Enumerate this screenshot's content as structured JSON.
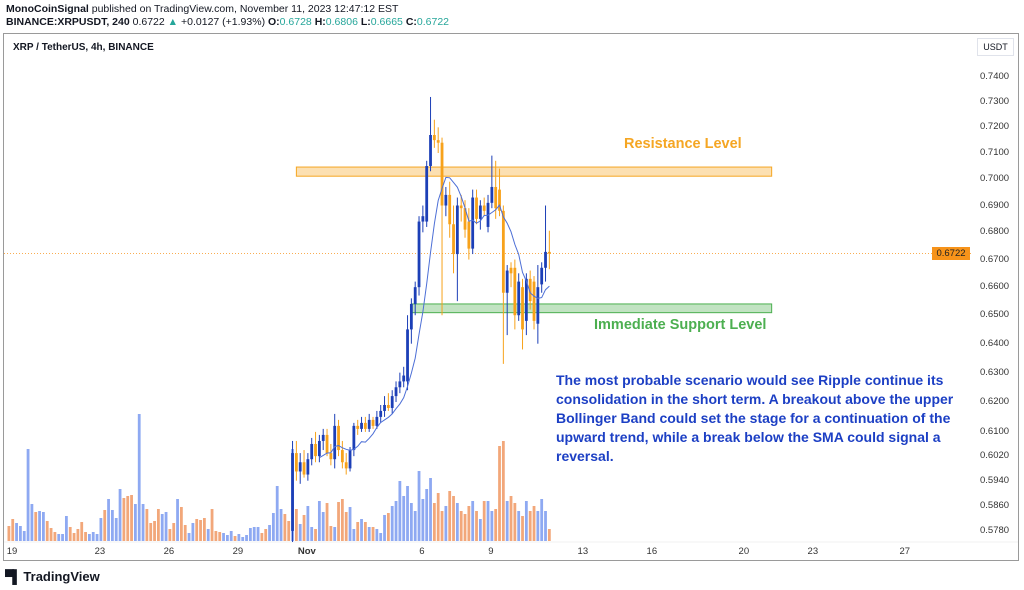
{
  "header": {
    "author": "MonoCoinSignal",
    "published": "published on TradingView.com, November 11, 2023 12:47:12 EST",
    "symbol": "BINANCE:XRPUSDT, 240",
    "price": "0.6722",
    "change": "+0.0127 (+1.93%)",
    "o_label": "O:",
    "o": "0.6728",
    "h_label": "H:",
    "h": "0.6806",
    "l_label": "L:",
    "l": "0.6665",
    "c_label": "C:",
    "c": "0.6722",
    "up_icon": "triangle-up-icon"
  },
  "chart_title": "XRP / TetherUS, 4h, BINANCE",
  "currency_button": "USDT",
  "branding": "TradingView",
  "colors": {
    "up": "#1c3fb7",
    "down": "#f7a21b",
    "vol_up": "#8ea9f2",
    "vol_down": "#f2a77a",
    "ma": "#4d6fd6",
    "resistance": "#f5a623",
    "support": "#4caf50",
    "text_blue": "#1c3fc4",
    "last_price": "#f7931a"
  },
  "chart_data": {
    "type": "candlestick",
    "interval": "4h",
    "y_scale": "log",
    "ylim": [
      0.5735,
      0.7575
    ],
    "grid": false,
    "y_ticks": [
      "0.7400",
      "0.7300",
      "0.7200",
      "0.7100",
      "0.7000",
      "0.6900",
      "0.6800",
      "0.6700",
      "0.6600",
      "0.6500",
      "0.6400",
      "0.6300",
      "0.6200",
      "0.6100",
      "0.6020",
      "0.5940",
      "0.5860",
      "0.5780"
    ],
    "x_ticks": [
      {
        "date": "2023-10-19",
        "label": "19"
      },
      {
        "date": "2023-10-23",
        "label": "23"
      },
      {
        "date": "2023-10-26",
        "label": "26"
      },
      {
        "date": "2023-10-29",
        "label": "29"
      },
      {
        "date": "2023-11-01",
        "label": "Nov"
      },
      {
        "date": "2023-11-06",
        "label": "6"
      },
      {
        "date": "2023-11-09",
        "label": "9"
      },
      {
        "date": "2023-11-13",
        "label": "13"
      },
      {
        "date": "2023-11-16",
        "label": "16"
      },
      {
        "date": "2023-11-20",
        "label": "20"
      },
      {
        "date": "2023-11-23",
        "label": "23"
      },
      {
        "date": "2023-11-27",
        "label": "27"
      }
    ],
    "last_price": "0.6722",
    "candles_first_bar": "2023-10-31 08:00",
    "candles_ohlc": [
      [
        0.578,
        0.607,
        0.572,
        0.603
      ],
      [
        0.603,
        0.607,
        0.594,
        0.597
      ],
      [
        0.597,
        0.603,
        0.593,
        0.6
      ],
      [
        0.6,
        0.604,
        0.595,
        0.596
      ],
      [
        0.596,
        0.603,
        0.594,
        0.601
      ],
      [
        0.601,
        0.608,
        0.599,
        0.606
      ],
      [
        0.606,
        0.61,
        0.6,
        0.602
      ],
      [
        0.602,
        0.609,
        0.6,
        0.607
      ],
      [
        0.607,
        0.611,
        0.604,
        0.609
      ],
      [
        0.609,
        0.611,
        0.602,
        0.603
      ],
      [
        0.603,
        0.606,
        0.599,
        0.601
      ],
      [
        0.601,
        0.616,
        0.598,
        0.612
      ],
      [
        0.612,
        0.614,
        0.602,
        0.604
      ],
      [
        0.604,
        0.607,
        0.598,
        0.6
      ],
      [
        0.6,
        0.603,
        0.596,
        0.598
      ],
      [
        0.598,
        0.605,
        0.597,
        0.604
      ],
      [
        0.604,
        0.613,
        0.602,
        0.612
      ],
      [
        0.612,
        0.614,
        0.609,
        0.611
      ],
      [
        0.611,
        0.615,
        0.61,
        0.613
      ],
      [
        0.613,
        0.615,
        0.61,
        0.611
      ],
      [
        0.611,
        0.616,
        0.61,
        0.614
      ],
      [
        0.614,
        0.615,
        0.611,
        0.612
      ],
      [
        0.612,
        0.617,
        0.611,
        0.615
      ],
      [
        0.615,
        0.619,
        0.613,
        0.617
      ],
      [
        0.617,
        0.622,
        0.615,
        0.619
      ],
      [
        0.619,
        0.623,
        0.617,
        0.618
      ],
      [
        0.618,
        0.624,
        0.616,
        0.622
      ],
      [
        0.622,
        0.627,
        0.62,
        0.625
      ],
      [
        0.625,
        0.63,
        0.623,
        0.627
      ],
      [
        0.627,
        0.632,
        0.625,
        0.629
      ],
      [
        0.627,
        0.65,
        0.624,
        0.645
      ],
      [
        0.645,
        0.656,
        0.64,
        0.654
      ],
      [
        0.654,
        0.662,
        0.65,
        0.66
      ],
      [
        0.66,
        0.686,
        0.657,
        0.684
      ],
      [
        0.684,
        0.69,
        0.68,
        0.686
      ],
      [
        0.684,
        0.707,
        0.682,
        0.705
      ],
      [
        0.705,
        0.732,
        0.703,
        0.717
      ],
      [
        0.717,
        0.723,
        0.712,
        0.715
      ],
      [
        0.715,
        0.72,
        0.71,
        0.714
      ],
      [
        0.714,
        0.716,
        0.65,
        0.69
      ],
      [
        0.69,
        0.697,
        0.686,
        0.694
      ],
      [
        0.694,
        0.699,
        0.678,
        0.683
      ],
      [
        0.683,
        0.69,
        0.665,
        0.672
      ],
      [
        0.672,
        0.693,
        0.655,
        0.69
      ],
      [
        0.69,
        0.694,
        0.684,
        0.689
      ],
      [
        0.689,
        0.692,
        0.678,
        0.681
      ],
      [
        0.684,
        0.689,
        0.67,
        0.674
      ],
      [
        0.674,
        0.696,
        0.672,
        0.693
      ],
      [
        0.693,
        0.696,
        0.683,
        0.685
      ],
      [
        0.685,
        0.692,
        0.681,
        0.69
      ],
      [
        0.69,
        0.693,
        0.686,
        0.688
      ],
      [
        0.682,
        0.694,
        0.68,
        0.691
      ],
      [
        0.691,
        0.709,
        0.689,
        0.697
      ],
      [
        0.697,
        0.707,
        0.685,
        0.689
      ],
      [
        0.696,
        0.704,
        0.686,
        0.688
      ],
      [
        0.688,
        0.69,
        0.633,
        0.658
      ],
      [
        0.658,
        0.668,
        0.643,
        0.666
      ],
      [
        0.667,
        0.669,
        0.66,
        0.665
      ],
      [
        0.667,
        0.67,
        0.645,
        0.65
      ],
      [
        0.65,
        0.665,
        0.648,
        0.662
      ],
      [
        0.66,
        0.663,
        0.638,
        0.645
      ],
      [
        0.648,
        0.665,
        0.643,
        0.663
      ],
      [
        0.663,
        0.666,
        0.652,
        0.655
      ],
      [
        0.662,
        0.664,
        0.645,
        0.648
      ],
      [
        0.647,
        0.668,
        0.64,
        0.66
      ],
      [
        0.661,
        0.669,
        0.658,
        0.667
      ],
      [
        0.667,
        0.69,
        0.662,
        0.6728
      ],
      [
        0.6728,
        0.6806,
        0.6665,
        0.6722
      ]
    ],
    "volume_first_bar": "2023-10-19 00:00",
    "volume": [
      15,
      22,
      18,
      15,
      10,
      92,
      37,
      29,
      30,
      29,
      20,
      13,
      9,
      7,
      7,
      25,
      14,
      8,
      12,
      19,
      9,
      7,
      9,
      7,
      23,
      31,
      42,
      31,
      23,
      52,
      43,
      45,
      46,
      37,
      127,
      37,
      32,
      18,
      20,
      32,
      27,
      29,
      12,
      18,
      42,
      34,
      16,
      8,
      18,
      22,
      21,
      23,
      12,
      32,
      10,
      9,
      8,
      6,
      10,
      5,
      7,
      4,
      6,
      13,
      14,
      14,
      8,
      12,
      16,
      28,
      55,
      32,
      27,
      20,
      92,
      32,
      17,
      26,
      35,
      14,
      12,
      40,
      29,
      38,
      15,
      14,
      39,
      42,
      29,
      34,
      12,
      19,
      22,
      19,
      14,
      14,
      12,
      8,
      26,
      28,
      35,
      40,
      60,
      45,
      55,
      38,
      30,
      70,
      42,
      52,
      63,
      38,
      48,
      30,
      35,
      50,
      45,
      38,
      30,
      27,
      35,
      40,
      30,
      22,
      40,
      40,
      30,
      32,
      95,
      100,
      40,
      45,
      38,
      30,
      25,
      40,
      30,
      35,
      30,
      42,
      30,
      12
    ],
    "volume_up_before_candles": [
      0,
      0,
      1,
      1,
      1,
      1,
      1,
      0,
      1,
      1,
      0,
      0,
      0,
      1,
      1,
      1,
      0,
      0,
      0,
      0,
      0,
      1,
      1,
      1,
      1,
      0,
      1,
      1,
      1,
      1,
      0,
      0,
      0,
      1,
      1,
      1,
      0,
      0,
      0,
      0,
      1,
      1,
      0,
      0,
      1,
      0,
      0,
      1,
      1,
      0,
      0,
      0,
      1,
      0,
      0,
      0,
      1,
      1,
      1,
      0,
      1,
      1,
      1,
      1,
      1,
      1,
      0,
      0,
      1,
      1,
      1,
      1,
      0,
      0
    ],
    "moving_average_period": 8,
    "zones": [
      {
        "name": "resistance",
        "label": "Resistance Level",
        "low": 0.7011,
        "high": 0.7046,
        "start": "2023-10-31 12:00",
        "end": "2023-11-21 04:00"
      },
      {
        "name": "support",
        "label": "Immediate Support Level",
        "low": 0.6509,
        "high": 0.654,
        "start": "2023-11-05 12:00",
        "end": "2023-11-21 04:00"
      }
    ],
    "annotation": "The most probable scenario would see Ripple continue its consolidation in the short term. A breakout above the upper Bollinger Band could set the stage for a continuation of the upward trend, while a break below the SMA could signal a reversal."
  }
}
